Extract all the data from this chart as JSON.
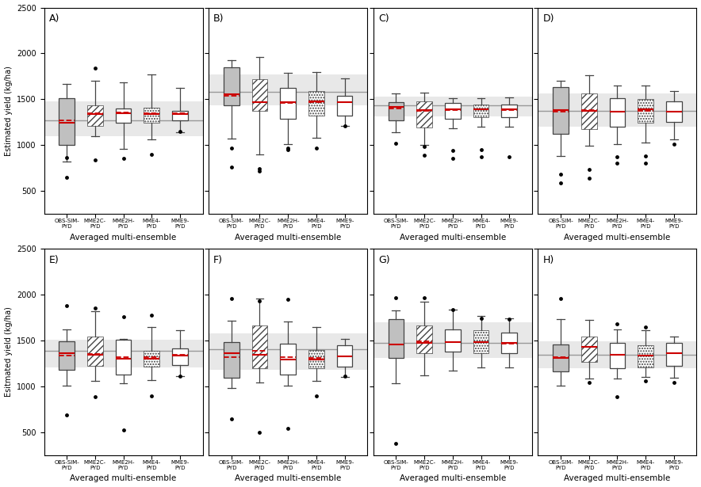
{
  "panels": [
    {
      "label": "A)",
      "ref_line": 1270,
      "ref_band": [
        1100,
        1480
      ],
      "boxes": [
        {
          "q1": 1000,
          "median": 1240,
          "q3": 1510,
          "whislo": 820,
          "whishi": 1670,
          "mean": 1265,
          "fliers": [
            645,
            860
          ]
        },
        {
          "q1": 1210,
          "median": 1340,
          "q3": 1430,
          "whislo": 1100,
          "whishi": 1700,
          "mean": 1350,
          "fliers": [
            840,
            1840
          ]
        },
        {
          "q1": 1240,
          "median": 1350,
          "q3": 1400,
          "whislo": 960,
          "whishi": 1680,
          "mean": 1355,
          "fliers": [
            855
          ]
        },
        {
          "q1": 1240,
          "median": 1340,
          "q3": 1410,
          "whislo": 1060,
          "whishi": 1770,
          "mean": 1345,
          "fliers": [
            895
          ]
        },
        {
          "q1": 1270,
          "median": 1340,
          "q3": 1375,
          "whislo": 1140,
          "whishi": 1625,
          "mean": 1350,
          "fliers": [
            1150
          ]
        }
      ]
    },
    {
      "label": "B)",
      "ref_line": 1580,
      "ref_band": [
        1430,
        1770
      ],
      "boxes": [
        {
          "q1": 1430,
          "median": 1555,
          "q3": 1850,
          "whislo": 1070,
          "whishi": 1930,
          "mean": 1540,
          "fliers": [
            760,
            970
          ]
        },
        {
          "q1": 1370,
          "median": 1470,
          "q3": 1720,
          "whislo": 900,
          "whishi": 1960,
          "mean": 1470,
          "fliers": [
            720,
            740
          ]
        },
        {
          "q1": 1290,
          "median": 1470,
          "q3": 1620,
          "whislo": 1010,
          "whishi": 1790,
          "mean": 1460,
          "fliers": [
            950,
            970
          ]
        },
        {
          "q1": 1320,
          "median": 1480,
          "q3": 1590,
          "whislo": 1080,
          "whishi": 1800,
          "mean": 1470,
          "fliers": [
            970
          ]
        },
        {
          "q1": 1320,
          "median": 1470,
          "q3": 1540,
          "whislo": 1210,
          "whishi": 1730,
          "mean": 1465,
          "fliers": [
            1210
          ]
        }
      ]
    },
    {
      "label": "C)",
      "ref_line": 1430,
      "ref_band": [
        1310,
        1530
      ],
      "boxes": [
        {
          "q1": 1270,
          "median": 1420,
          "q3": 1470,
          "whislo": 1140,
          "whishi": 1560,
          "mean": 1400,
          "fliers": [
            1020
          ]
        },
        {
          "q1": 1190,
          "median": 1380,
          "q3": 1480,
          "whislo": 1000,
          "whishi": 1570,
          "mean": 1370,
          "fliers": [
            890,
            980
          ]
        },
        {
          "q1": 1290,
          "median": 1390,
          "q3": 1460,
          "whislo": 1180,
          "whishi": 1510,
          "mean": 1385,
          "fliers": [
            850,
            940
          ]
        },
        {
          "q1": 1300,
          "median": 1390,
          "q3": 1440,
          "whislo": 1200,
          "whishi": 1510,
          "mean": 1390,
          "fliers": [
            870,
            950
          ]
        },
        {
          "q1": 1300,
          "median": 1390,
          "q3": 1440,
          "whislo": 1200,
          "whishi": 1520,
          "mean": 1385,
          "fliers": [
            870
          ]
        }
      ]
    },
    {
      "label": "D)",
      "ref_line": 1370,
      "ref_band": [
        1200,
        1560
      ],
      "boxes": [
        {
          "q1": 1120,
          "median": 1380,
          "q3": 1630,
          "whislo": 880,
          "whishi": 1700,
          "mean": 1360,
          "fliers": [
            590,
            680
          ]
        },
        {
          "q1": 1170,
          "median": 1375,
          "q3": 1560,
          "whislo": 990,
          "whishi": 1760,
          "mean": 1380,
          "fliers": [
            640,
            730
          ]
        },
        {
          "q1": 1200,
          "median": 1360,
          "q3": 1510,
          "whislo": 1010,
          "whishi": 1650,
          "mean": 1360,
          "fliers": [
            800,
            870
          ]
        },
        {
          "q1": 1240,
          "median": 1390,
          "q3": 1500,
          "whislo": 1030,
          "whishi": 1650,
          "mean": 1375,
          "fliers": [
            800,
            880
          ]
        },
        {
          "q1": 1250,
          "median": 1360,
          "q3": 1480,
          "whislo": 1060,
          "whishi": 1590,
          "mean": 1360,
          "fliers": [
            1010
          ]
        }
      ]
    },
    {
      "label": "E)",
      "ref_line": 1390,
      "ref_band": [
        1210,
        1510
      ],
      "boxes": [
        {
          "q1": 1180,
          "median": 1360,
          "q3": 1490,
          "whislo": 1010,
          "whishi": 1620,
          "mean": 1335,
          "fliers": [
            685,
            1880
          ]
        },
        {
          "q1": 1220,
          "median": 1345,
          "q3": 1540,
          "whislo": 1060,
          "whishi": 1820,
          "mean": 1355,
          "fliers": [
            890,
            1850
          ]
        },
        {
          "q1": 1125,
          "median": 1305,
          "q3": 1510,
          "whislo": 1030,
          "whishi": 1515,
          "mean": 1315,
          "fliers": [
            525,
            1760
          ]
        },
        {
          "q1": 1215,
          "median": 1305,
          "q3": 1390,
          "whislo": 1065,
          "whishi": 1645,
          "mean": 1315,
          "fliers": [
            895,
            1780
          ]
        },
        {
          "q1": 1235,
          "median": 1340,
          "q3": 1415,
          "whislo": 1110,
          "whishi": 1615,
          "mean": 1345,
          "fliers": [
            1110
          ]
        }
      ]
    },
    {
      "label": "F)",
      "ref_line": 1405,
      "ref_band": [
        1180,
        1580
      ],
      "boxes": [
        {
          "q1": 1090,
          "median": 1360,
          "q3": 1480,
          "whislo": 980,
          "whishi": 1720,
          "mean": 1315,
          "fliers": [
            645,
            1960
          ]
        },
        {
          "q1": 1200,
          "median": 1345,
          "q3": 1660,
          "whislo": 1040,
          "whishi": 1960,
          "mean": 1390,
          "fliers": [
            500,
            1930
          ]
        },
        {
          "q1": 1130,
          "median": 1295,
          "q3": 1465,
          "whislo": 1010,
          "whishi": 1705,
          "mean": 1315,
          "fliers": [
            540,
            1950
          ]
        },
        {
          "q1": 1195,
          "median": 1290,
          "q3": 1395,
          "whislo": 1055,
          "whishi": 1650,
          "mean": 1310,
          "fliers": [
            895
          ]
        },
        {
          "q1": 1215,
          "median": 1330,
          "q3": 1445,
          "whislo": 1100,
          "whishi": 1515,
          "mean": 1330,
          "fliers": [
            1110
          ]
        }
      ]
    },
    {
      "label": "G)",
      "ref_line": 1470,
      "ref_band": [
        1310,
        1700
      ],
      "boxes": [
        {
          "q1": 1310,
          "median": 1460,
          "q3": 1730,
          "whislo": 1030,
          "whishi": 1830,
          "mean": 1455,
          "fliers": [
            380,
            1970
          ]
        },
        {
          "q1": 1360,
          "median": 1475,
          "q3": 1660,
          "whislo": 1120,
          "whishi": 1920,
          "mean": 1490,
          "fliers": [
            1970
          ]
        },
        {
          "q1": 1375,
          "median": 1485,
          "q3": 1625,
          "whislo": 1170,
          "whishi": 1840,
          "mean": 1480,
          "fliers": [
            1840
          ]
        },
        {
          "q1": 1360,
          "median": 1485,
          "q3": 1610,
          "whislo": 1205,
          "whishi": 1765,
          "mean": 1480,
          "fliers": [
            1745
          ]
        },
        {
          "q1": 1365,
          "median": 1475,
          "q3": 1590,
          "whislo": 1205,
          "whishi": 1740,
          "mean": 1465,
          "fliers": [
            1730
          ]
        }
      ]
    },
    {
      "label": "H)",
      "ref_line": 1345,
      "ref_band": [
        1195,
        1490
      ],
      "boxes": [
        {
          "q1": 1165,
          "median": 1310,
          "q3": 1460,
          "whislo": 1005,
          "whishi": 1730,
          "mean": 1320,
          "fliers": [
            1960
          ]
        },
        {
          "q1": 1265,
          "median": 1430,
          "q3": 1545,
          "whislo": 1085,
          "whishi": 1725,
          "mean": 1430,
          "fliers": [
            1040
          ]
        },
        {
          "q1": 1195,
          "median": 1345,
          "q3": 1475,
          "whislo": 1085,
          "whishi": 1625,
          "mean": 1345,
          "fliers": [
            890,
            1685
          ]
        },
        {
          "q1": 1205,
          "median": 1335,
          "q3": 1445,
          "whislo": 1105,
          "whishi": 1615,
          "mean": 1335,
          "fliers": [
            1060,
            1645
          ]
        },
        {
          "q1": 1225,
          "median": 1360,
          "q3": 1475,
          "whislo": 1095,
          "whishi": 1545,
          "mean": 1360,
          "fliers": [
            1040
          ]
        }
      ]
    }
  ],
  "box_styles": [
    {
      "facecolor": "#c0c0c0",
      "hatch": null,
      "edgecolor": "#444444"
    },
    {
      "facecolor": "white",
      "hatch": "////",
      "edgecolor": "#444444"
    },
    {
      "facecolor": "white",
      "hatch": null,
      "edgecolor": "#444444"
    },
    {
      "facecolor": "white",
      "hatch": ".....",
      "edgecolor": "#444444"
    },
    {
      "facecolor": "white",
      "hatch": null,
      "edgecolor": "#444444"
    }
  ],
  "xlabels_line1": [
    "OBS-SIM-",
    "MME2C-",
    "MME2H-",
    "MME4-",
    "MME9-"
  ],
  "xlabels_line2": [
    "PYD",
    "PYD",
    "PYD",
    "PYD",
    "PYD"
  ],
  "ylabel_top": "Estimated yield (kg/ha)",
  "ylabel_bottom": "Esitmated yield (kg/ha)",
  "xlabel": "Averaged multi-ensemble",
  "ylim": [
    250,
    2500
  ],
  "yticks": [
    500,
    1000,
    1500,
    2000,
    2500
  ],
  "ref_band_color": "#e8e8e8",
  "ref_line_color": "#999999",
  "mean_line_color": "#cc0000",
  "median_line_color": "#cc0000",
  "flier_color": "black",
  "background_color": "white"
}
